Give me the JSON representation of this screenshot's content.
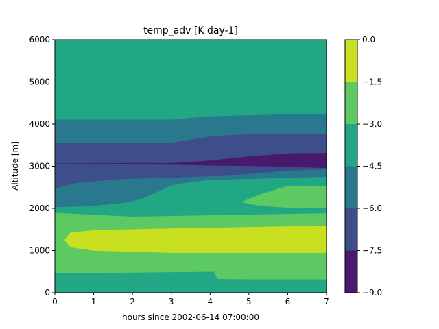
{
  "chart_data": {
    "type": "contour",
    "title": "temp_adv [K day-1]",
    "xlabel": "hours since 2002-06-14 07:00:00",
    "ylabel": "Altitude [m]",
    "xlim": [
      0,
      7
    ],
    "ylim": [
      0,
      6000
    ],
    "x_ticks": [
      "0",
      "1",
      "2",
      "3",
      "4",
      "5",
      "6",
      "7"
    ],
    "y_ticks": [
      "0",
      "1000",
      "2000",
      "3000",
      "4000",
      "5000",
      "6000"
    ],
    "colorbar": {
      "levels": [
        -9.0,
        -7.5,
        -6.0,
        -4.5,
        -3.0,
        -1.5,
        0.0
      ],
      "tick_labels": [
        "−9.0",
        "−7.5",
        "−6.0",
        "−4.5",
        "−3.0",
        "−1.5",
        "0.0"
      ],
      "colors": [
        "#471a6e",
        "#3d4e8a",
        "#2a788e",
        "#22a785",
        "#5dc962",
        "#c8e020"
      ]
    },
    "regions": [
      {
        "band": "-4.5 to -3.0",
        "level_index": 3,
        "points": [
          [
            0,
            0
          ],
          [
            7,
            0
          ],
          [
            7,
            6000
          ],
          [
            0,
            6000
          ]
        ]
      },
      {
        "band": "-3.0 to -1.5",
        "level_index": 4,
        "points": [
          [
            0,
            460
          ],
          [
            2,
            480
          ],
          [
            4.1,
            500
          ],
          [
            4.2,
            330
          ],
          [
            5,
            320
          ],
          [
            7,
            320
          ],
          [
            7,
            1880
          ],
          [
            2,
            1800
          ],
          [
            0,
            1890
          ]
        ]
      },
      {
        "band": "-1.5 to 0.0",
        "level_index": 5,
        "points": [
          [
            0.25,
            1250
          ],
          [
            0.4,
            1420
          ],
          [
            1,
            1480
          ],
          [
            3,
            1520
          ],
          [
            6,
            1570
          ],
          [
            7,
            1580
          ],
          [
            7,
            950
          ],
          [
            6,
            950
          ],
          [
            3,
            950
          ],
          [
            1,
            1000
          ],
          [
            0.4,
            1080
          ]
        ]
      },
      {
        "band": "-6.0 to -4.5",
        "level_index": 2,
        "points": [
          [
            0,
            4100
          ],
          [
            3,
            4100
          ],
          [
            4,
            4180
          ],
          [
            6,
            4230
          ],
          [
            7,
            4230
          ],
          [
            7,
            2750
          ],
          [
            4,
            2680
          ],
          [
            3.3,
            2600
          ],
          [
            3,
            2550
          ],
          [
            2.3,
            2250
          ],
          [
            1.9,
            2150
          ],
          [
            1,
            2060
          ],
          [
            0,
            2030
          ]
        ]
      },
      {
        "band": "-3.0 to -1.5",
        "level_index": 4,
        "points": [
          [
            4.8,
            2150
          ],
          [
            5.3,
            2330
          ],
          [
            6,
            2530
          ],
          [
            7,
            2530
          ],
          [
            7,
            2020
          ],
          [
            6,
            2020
          ],
          [
            5.3,
            2060
          ]
        ]
      },
      {
        "band": "-7.5 to -6.0",
        "level_index": 1,
        "points": [
          [
            0,
            3550
          ],
          [
            3,
            3550
          ],
          [
            4,
            3700
          ],
          [
            5,
            3760
          ],
          [
            7,
            3760
          ],
          [
            7,
            2930
          ],
          [
            6,
            2900
          ],
          [
            4.5,
            2780
          ],
          [
            3.2,
            2740
          ],
          [
            1.7,
            2700
          ],
          [
            0.5,
            2600
          ],
          [
            0,
            2470
          ]
        ]
      },
      {
        "band": "-9.0 to -7.5",
        "level_index": 0,
        "points": [
          [
            0,
            3060
          ],
          [
            2,
            3070
          ],
          [
            3,
            3070
          ],
          [
            4,
            3130
          ],
          [
            5,
            3230
          ],
          [
            6,
            3300
          ],
          [
            7,
            3310
          ],
          [
            7,
            2960
          ],
          [
            6,
            2990
          ],
          [
            5,
            3010
          ],
          [
            4,
            3020
          ],
          [
            3,
            3040
          ],
          [
            1,
            3050
          ],
          [
            0,
            3055
          ]
        ]
      }
    ]
  }
}
